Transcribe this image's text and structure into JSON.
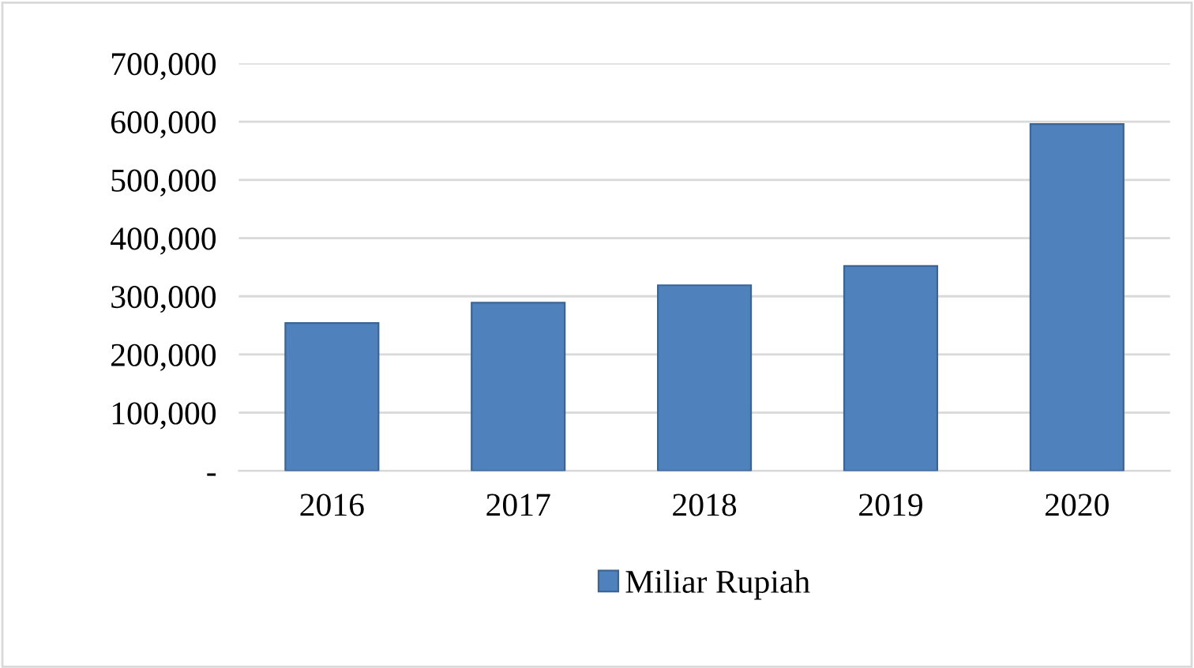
{
  "chart_data": {
    "type": "bar",
    "categories": [
      "2016",
      "2017",
      "2018",
      "2019",
      "2020"
    ],
    "series": [
      {
        "name": "Miliar Rupiah",
        "color": "#4f81bd",
        "values": [
          254000,
          289000,
          319000,
          352000,
          596000
        ]
      }
    ],
    "ylim": [
      0,
      700000
    ],
    "yticks": [
      {
        "value": 0,
        "label": "-"
      },
      {
        "value": 100000,
        "label": "100,000"
      },
      {
        "value": 200000,
        "label": "200,000"
      },
      {
        "value": 300000,
        "label": "300,000"
      },
      {
        "value": 400000,
        "label": "400,000"
      },
      {
        "value": 500000,
        "label": "500,000"
      },
      {
        "value": 600000,
        "label": "600,000"
      },
      {
        "value": 700000,
        "label": "700,000"
      }
    ],
    "grid": "y",
    "legend": "bottom"
  }
}
